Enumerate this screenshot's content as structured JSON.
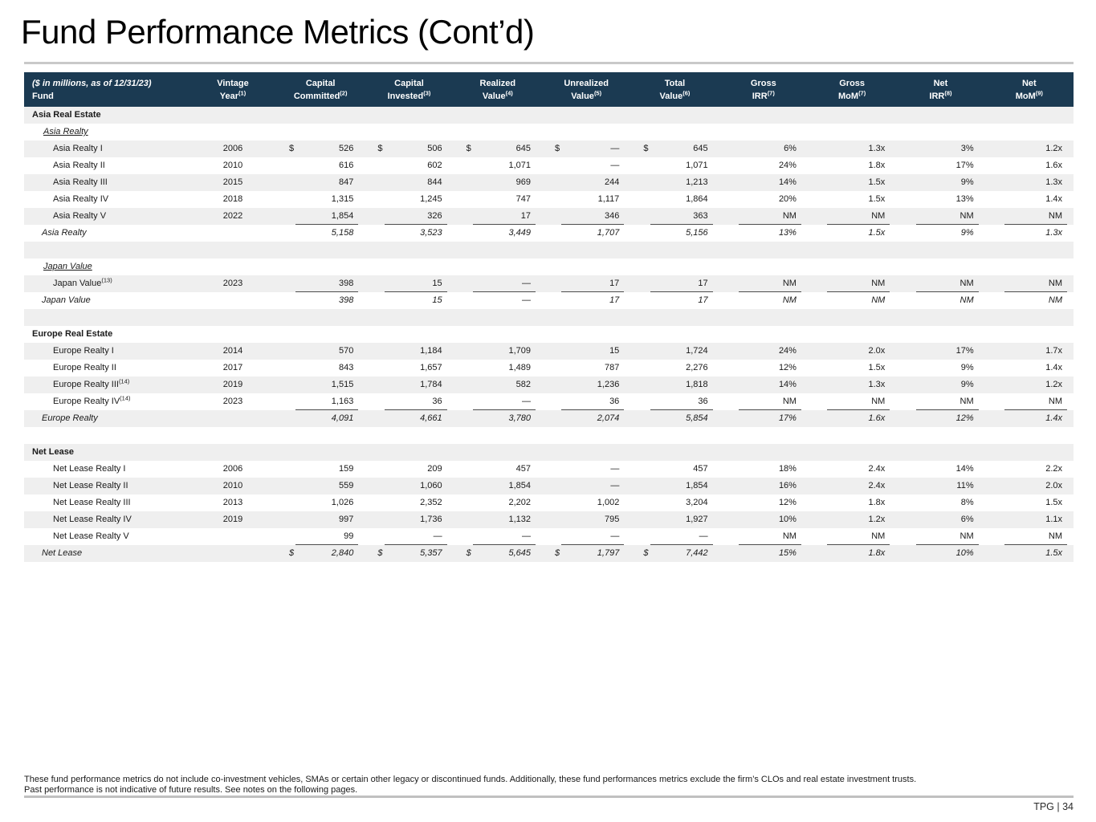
{
  "page": {
    "title": "Fund Performance Metrics (Cont’d)",
    "footnote_line1": "These fund performance metrics do not include co-investment vehicles, SMAs or certain other legacy or discontinued funds. Additionally, these fund performances metrics exclude the firm’s CLOs and real estate investment trusts.",
    "footnote_line2": "Past performance is not indicative of future results. See notes on the following pages.",
    "page_label": "TPG | 34"
  },
  "colors": {
    "header_navy": "#1B3A52",
    "stripe_gray": "#EFEFEF",
    "rule_gray": "#C9C9C9",
    "sum_line": "#4D4D4D"
  },
  "table": {
    "header": {
      "fund_line1": "($ in millions, as of 12/31/23)",
      "fund_line2": "Fund",
      "columns": [
        {
          "line1": "Vintage",
          "line2": "Year",
          "sup": "(1)"
        },
        {
          "line1": "Capital",
          "line2": "Committed",
          "sup": "(2)"
        },
        {
          "line1": "Capital",
          "line2": "Invested",
          "sup": "(3)"
        },
        {
          "line1": "Realized",
          "line2": "Value",
          "sup": "(4)"
        },
        {
          "line1": "Unrealized",
          "line2": "Value",
          "sup": "(5)"
        },
        {
          "line1": "Total",
          "line2": "Value",
          "sup": "(6)"
        },
        {
          "line1": "Gross",
          "line2": "IRR",
          "sup": "(7)"
        },
        {
          "line1": "Gross",
          "line2": "MoM",
          "sup": "(7)"
        },
        {
          "line1": "Net",
          "line2": "IRR",
          "sup": "(8)"
        },
        {
          "line1": "Net",
          "line2": "MoM",
          "sup": "(9)"
        }
      ]
    },
    "rows": [
      {
        "type": "section",
        "label": "Asia Real Estate"
      },
      {
        "type": "subsection",
        "label": "Asia Realty"
      },
      {
        "type": "fund",
        "label": "Asia Realty I",
        "vintage": "2006",
        "dollar": true,
        "values": [
          "526",
          "506",
          "645",
          "—",
          "645",
          "6%",
          "1.3x",
          "3%",
          "1.2x"
        ]
      },
      {
        "type": "fund",
        "label": "Asia Realty II",
        "vintage": "2010",
        "values": [
          "616",
          "602",
          "1,071",
          "—",
          "1,071",
          "24%",
          "1.8x",
          "17%",
          "1.6x"
        ]
      },
      {
        "type": "fund",
        "label": "Asia Realty III",
        "vintage": "2015",
        "values": [
          "847",
          "844",
          "969",
          "244",
          "1,213",
          "14%",
          "1.5x",
          "9%",
          "1.3x"
        ]
      },
      {
        "type": "fund",
        "label": "Asia Realty IV",
        "vintage": "2018",
        "values": [
          "1,315",
          "1,245",
          "747",
          "1,117",
          "1,864",
          "20%",
          "1.5x",
          "13%",
          "1.4x"
        ]
      },
      {
        "type": "fund",
        "label": "Asia Realty V",
        "vintage": "2022",
        "values": [
          "1,854",
          "326",
          "17",
          "346",
          "363",
          "NM",
          "NM",
          "NM",
          "NM"
        ]
      },
      {
        "type": "total",
        "label": "Asia Realty",
        "values": [
          "5,158",
          "3,523",
          "3,449",
          "1,707",
          "5,156",
          "13%",
          "1.5x",
          "9%",
          "1.3x"
        ]
      },
      {
        "type": "spacer"
      },
      {
        "type": "subsection",
        "label": "Japan Value"
      },
      {
        "type": "fund",
        "label": "Japan Value",
        "sup": "(13)",
        "vintage": "2023",
        "values": [
          "398",
          "15",
          "—",
          "17",
          "17",
          "NM",
          "NM",
          "NM",
          "NM"
        ]
      },
      {
        "type": "total",
        "label": "Japan Value",
        "values": [
          "398",
          "15",
          "—",
          "17",
          "17",
          "NM",
          "NM",
          "NM",
          "NM"
        ]
      },
      {
        "type": "spacer"
      },
      {
        "type": "section",
        "label": "Europe Real Estate"
      },
      {
        "type": "fund",
        "label": "Europe Realty I",
        "vintage": "2014",
        "values": [
          "570",
          "1,184",
          "1,709",
          "15",
          "1,724",
          "24%",
          "2.0x",
          "17%",
          "1.7x"
        ]
      },
      {
        "type": "fund",
        "label": "Europe Realty II",
        "vintage": "2017",
        "values": [
          "843",
          "1,657",
          "1,489",
          "787",
          "2,276",
          "12%",
          "1.5x",
          "9%",
          "1.4x"
        ]
      },
      {
        "type": "fund",
        "label": "Europe Realty III",
        "sup": "(14)",
        "vintage": "2019",
        "values": [
          "1,515",
          "1,784",
          "582",
          "1,236",
          "1,818",
          "14%",
          "1.3x",
          "9%",
          "1.2x"
        ]
      },
      {
        "type": "fund",
        "label": "Europe Realty IV",
        "sup": "(14)",
        "vintage": "2023",
        "values": [
          "1,163",
          "36",
          "—",
          "36",
          "36",
          "NM",
          "NM",
          "NM",
          "NM"
        ]
      },
      {
        "type": "total",
        "label": "Europe Realty",
        "values": [
          "4,091",
          "4,661",
          "3,780",
          "2,074",
          "5,854",
          "17%",
          "1.6x",
          "12%",
          "1.4x"
        ]
      },
      {
        "type": "spacer"
      },
      {
        "type": "section",
        "label": "Net Lease"
      },
      {
        "type": "fund",
        "label": "Net Lease Realty I",
        "vintage": "2006",
        "values": [
          "159",
          "209",
          "457",
          "—",
          "457",
          "18%",
          "2.4x",
          "14%",
          "2.2x"
        ]
      },
      {
        "type": "fund",
        "label": "Net Lease Realty II",
        "vintage": "2010",
        "values": [
          "559",
          "1,060",
          "1,854",
          "—",
          "1,854",
          "16%",
          "2.4x",
          "11%",
          "2.0x"
        ]
      },
      {
        "type": "fund",
        "label": "Net Lease Realty III",
        "vintage": "2013",
        "values": [
          "1,026",
          "2,352",
          "2,202",
          "1,002",
          "3,204",
          "12%",
          "1.8x",
          "8%",
          "1.5x"
        ]
      },
      {
        "type": "fund",
        "label": "Net Lease Realty IV",
        "vintage": "2019",
        "values": [
          "997",
          "1,736",
          "1,132",
          "795",
          "1,927",
          "10%",
          "1.2x",
          "6%",
          "1.1x"
        ]
      },
      {
        "type": "fund",
        "label": "Net Lease Realty V",
        "vintage": "",
        "values": [
          "99",
          "—",
          "—",
          "—",
          "—",
          "NM",
          "NM",
          "NM",
          "NM"
        ]
      },
      {
        "type": "total",
        "label": "Net Lease",
        "dollar": true,
        "values": [
          "2,840",
          "5,357",
          "5,645",
          "1,797",
          "7,442",
          "15%",
          "1.8x",
          "10%",
          "1.5x"
        ]
      }
    ]
  }
}
